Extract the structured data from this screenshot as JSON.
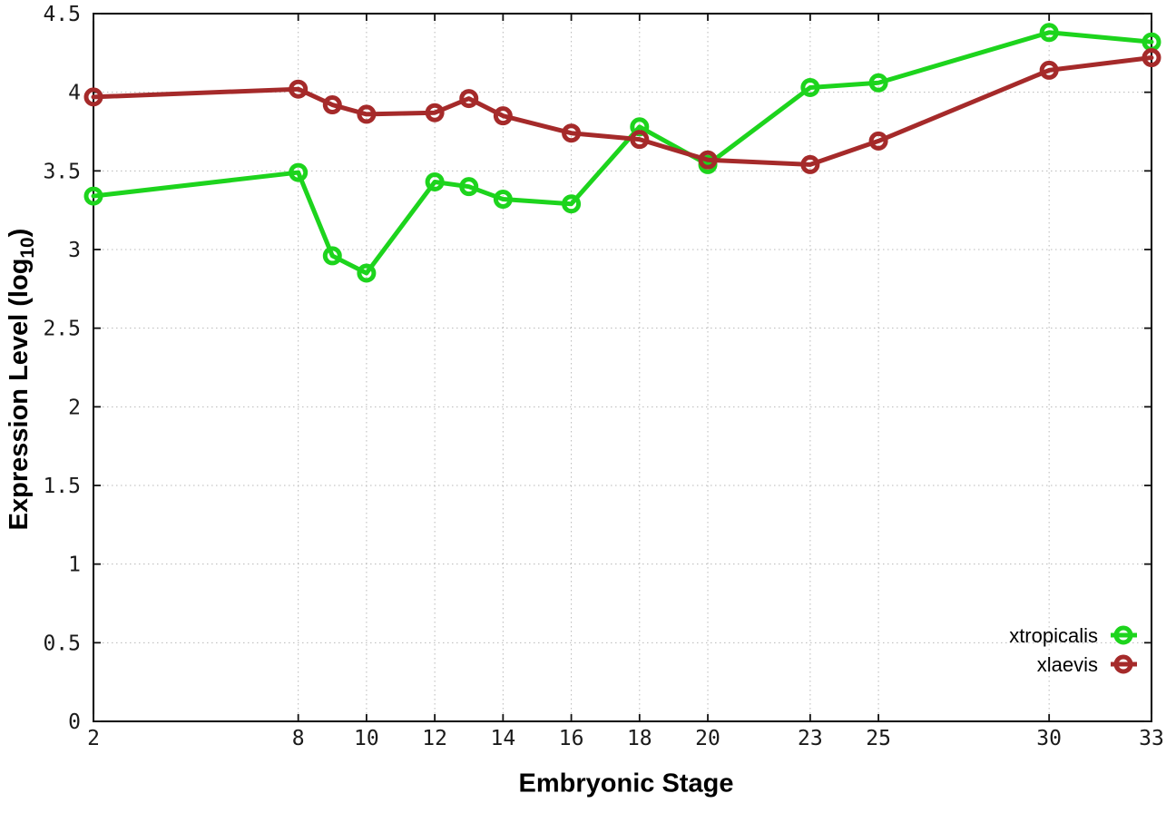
{
  "figure": {
    "xlabel": "Embryonic Stage",
    "ylabel_prefix": "Expression Level (log",
    "ylabel_sub": "10",
    "ylabel_suffix": ")"
  },
  "chart_data": {
    "type": "line",
    "title": "",
    "xlabel": "Embryonic Stage",
    "ylabel": "Expression Level (log10)",
    "x": [
      2,
      8,
      9,
      10,
      12,
      13,
      14,
      16,
      18,
      20,
      23,
      25,
      30,
      33
    ],
    "series": [
      {
        "name": "xtropicalis",
        "color": "#1dd41d",
        "marker": "open-circle",
        "values": [
          3.34,
          3.49,
          2.96,
          2.85,
          3.43,
          3.4,
          3.32,
          3.29,
          3.78,
          3.54,
          4.03,
          4.06,
          4.38,
          4.32
        ]
      },
      {
        "name": "xlaevis",
        "color": "#a52a2a",
        "marker": "open-circle",
        "values": [
          3.97,
          4.02,
          3.92,
          3.86,
          3.87,
          3.96,
          3.85,
          3.74,
          3.7,
          3.57,
          3.54,
          3.69,
          4.14,
          4.22
        ]
      }
    ],
    "xlim": [
      2,
      33
    ],
    "ylim": [
      0,
      4.5
    ],
    "xticks": [
      2,
      8,
      10,
      12,
      14,
      16,
      18,
      20,
      23,
      25,
      30,
      33
    ],
    "xtick_labels": [
      "2",
      "8",
      "10",
      "12",
      "14",
      "16",
      "18",
      "20",
      "23",
      "25",
      "30",
      "33"
    ],
    "yticks": [
      0,
      0.5,
      1,
      1.5,
      2,
      2.5,
      3,
      3.5,
      4,
      4.5
    ],
    "ytick_labels": [
      "0",
      "0.5",
      "1",
      "1.5",
      "2",
      "2.5",
      "3",
      "3.5",
      "4",
      "4.5"
    ],
    "grid": true,
    "legend_position": "inside-bottom-right"
  },
  "legend": {
    "entries": [
      {
        "label": "xtropicalis",
        "color": "#1dd41d"
      },
      {
        "label": "xlaevis",
        "color": "#a52a2a"
      }
    ]
  }
}
